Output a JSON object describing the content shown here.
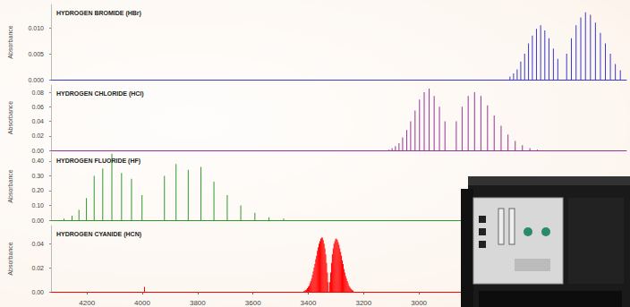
{
  "chart_data": [
    {
      "type": "bar",
      "title": "HYDROGEN BROMIDE (HBr)",
      "ylabel": "Absorbance",
      "color": "#3a3acc",
      "xlim": [
        4330,
        2250
      ],
      "ylim": [
        0,
        0.0145
      ],
      "yticks": [
        {
          "value": 0,
          "label": "0.000"
        },
        0.005,
        {
          "value": 0.01,
          "label": "0.010"
        }
      ],
      "tick_labels": "y",
      "x": [
        2498,
        2514,
        2530,
        2545,
        2560,
        2575,
        2590,
        2604,
        2618,
        2632,
        2645,
        2658,
        2671,
        2466,
        2449,
        2432,
        2415,
        2398,
        2380,
        2362,
        2344,
        2326,
        2308,
        2290,
        2272
      ],
      "values": [
        0.004,
        0.006,
        0.008,
        0.0095,
        0.0105,
        0.0098,
        0.0085,
        0.007,
        0.005,
        0.0035,
        0.002,
        0.0012,
        0.0006,
        0.005,
        0.008,
        0.0105,
        0.012,
        0.013,
        0.0125,
        0.011,
        0.009,
        0.007,
        0.005,
        0.003,
        0.0018
      ]
    },
    {
      "type": "bar",
      "title": "HYDROGEN CHLORIDE (HCl)",
      "ylabel": "Absorbance",
      "color": "#993399",
      "xlim": [
        4330,
        2250
      ],
      "ylim": [
        0,
        0.09
      ],
      "yticks": [
        {
          "value": 0,
          "label": "0.00"
        },
        0.02,
        0.04,
        0.06,
        0.08
      ],
      "tick_labels": "y",
      "x": [
        2906,
        2926,
        2945,
        2963,
        2981,
        2998,
        3014,
        3030,
        3044,
        3059,
        3072,
        3085,
        3097,
        3108,
        2865,
        2844,
        2822,
        2799,
        2776,
        2752,
        2728,
        2703,
        2678,
        2652,
        2626,
        2599,
        2572
      ],
      "values": [
        0.04,
        0.06,
        0.075,
        0.085,
        0.08,
        0.07,
        0.055,
        0.04,
        0.028,
        0.018,
        0.01,
        0.006,
        0.003,
        0.001,
        0.04,
        0.06,
        0.075,
        0.08,
        0.075,
        0.062,
        0.048,
        0.034,
        0.022,
        0.013,
        0.007,
        0.003,
        0.001
      ]
    },
    {
      "type": "bar",
      "title": "HYDROGEN FLUORIDE (HF)",
      "ylabel": "Absorbance",
      "color": "#2e9a2e",
      "xlim": [
        4330,
        2250
      ],
      "ylim": [
        0,
        0.46
      ],
      "yticks": [
        {
          "value": 0,
          "label": "0.00"
        },
        {
          "value": 0.1,
          "label": "0.10"
        },
        {
          "value": 0.2,
          "label": "0.20"
        },
        {
          "value": 0.3,
          "label": "0.30"
        },
        {
          "value": 0.4,
          "label": "0.40"
        }
      ],
      "tick_labels": "y",
      "x": [
        4283,
        4254,
        4229,
        4202,
        4174,
        4143,
        4110,
        4075,
        4039,
        4001,
        3920,
        3878,
        3834,
        3788,
        3741,
        3693,
        3644,
        3593,
        3542,
        3489
      ],
      "values": [
        0.01,
        0.03,
        0.07,
        0.15,
        0.3,
        0.35,
        0.45,
        0.32,
        0.28,
        0.17,
        0.3,
        0.38,
        0.34,
        0.36,
        0.26,
        0.17,
        0.1,
        0.05,
        0.02,
        0.01
      ]
    },
    {
      "type": "bar",
      "title": "HYDROGEN CYANIDE (HCN)",
      "ylabel": "Absorbance",
      "color": "#ff0000",
      "xlim": [
        4330,
        2250
      ],
      "ylim": [
        0,
        0.055
      ],
      "yticks": [
        {
          "value": 0,
          "label": "0.00"
        },
        0.02,
        0.04
      ],
      "xticks": [
        4200,
        4000,
        3800,
        3600,
        3400,
        3200,
        3000
      ],
      "x": [
        3238,
        3241,
        3244,
        3247,
        3250,
        3253,
        3256,
        3259,
        3262,
        3265,
        3268,
        3271,
        3274,
        3277,
        3280,
        3283,
        3286,
        3289,
        3292,
        3295,
        3298,
        3301,
        3304,
        3307,
        3310,
        3313,
        3316,
        3319,
        3322,
        3328,
        3331,
        3334,
        3337,
        3340,
        3343,
        3346,
        3349,
        3352,
        3355,
        3358,
        3361,
        3364,
        3367,
        3370,
        3373,
        3376,
        3379,
        3382,
        3385,
        3388,
        3391,
        3394,
        3397,
        3400,
        3403,
        3406,
        3409,
        3412,
        3415,
        3992
      ],
      "values": [
        0.001,
        0.0015,
        0.002,
        0.003,
        0.004,
        0.005,
        0.007,
        0.009,
        0.011,
        0.013,
        0.016,
        0.019,
        0.023,
        0.026,
        0.03,
        0.033,
        0.036,
        0.039,
        0.041,
        0.043,
        0.044,
        0.044,
        0.042,
        0.04,
        0.036,
        0.031,
        0.024,
        0.016,
        0.008,
        0.008,
        0.016,
        0.024,
        0.031,
        0.036,
        0.04,
        0.043,
        0.045,
        0.045,
        0.044,
        0.042,
        0.04,
        0.037,
        0.034,
        0.03,
        0.027,
        0.023,
        0.02,
        0.017,
        0.014,
        0.011,
        0.009,
        0.007,
        0.005,
        0.004,
        0.003,
        0.002,
        0.0015,
        0.001,
        0.0007,
        0.004
      ]
    }
  ]
}
